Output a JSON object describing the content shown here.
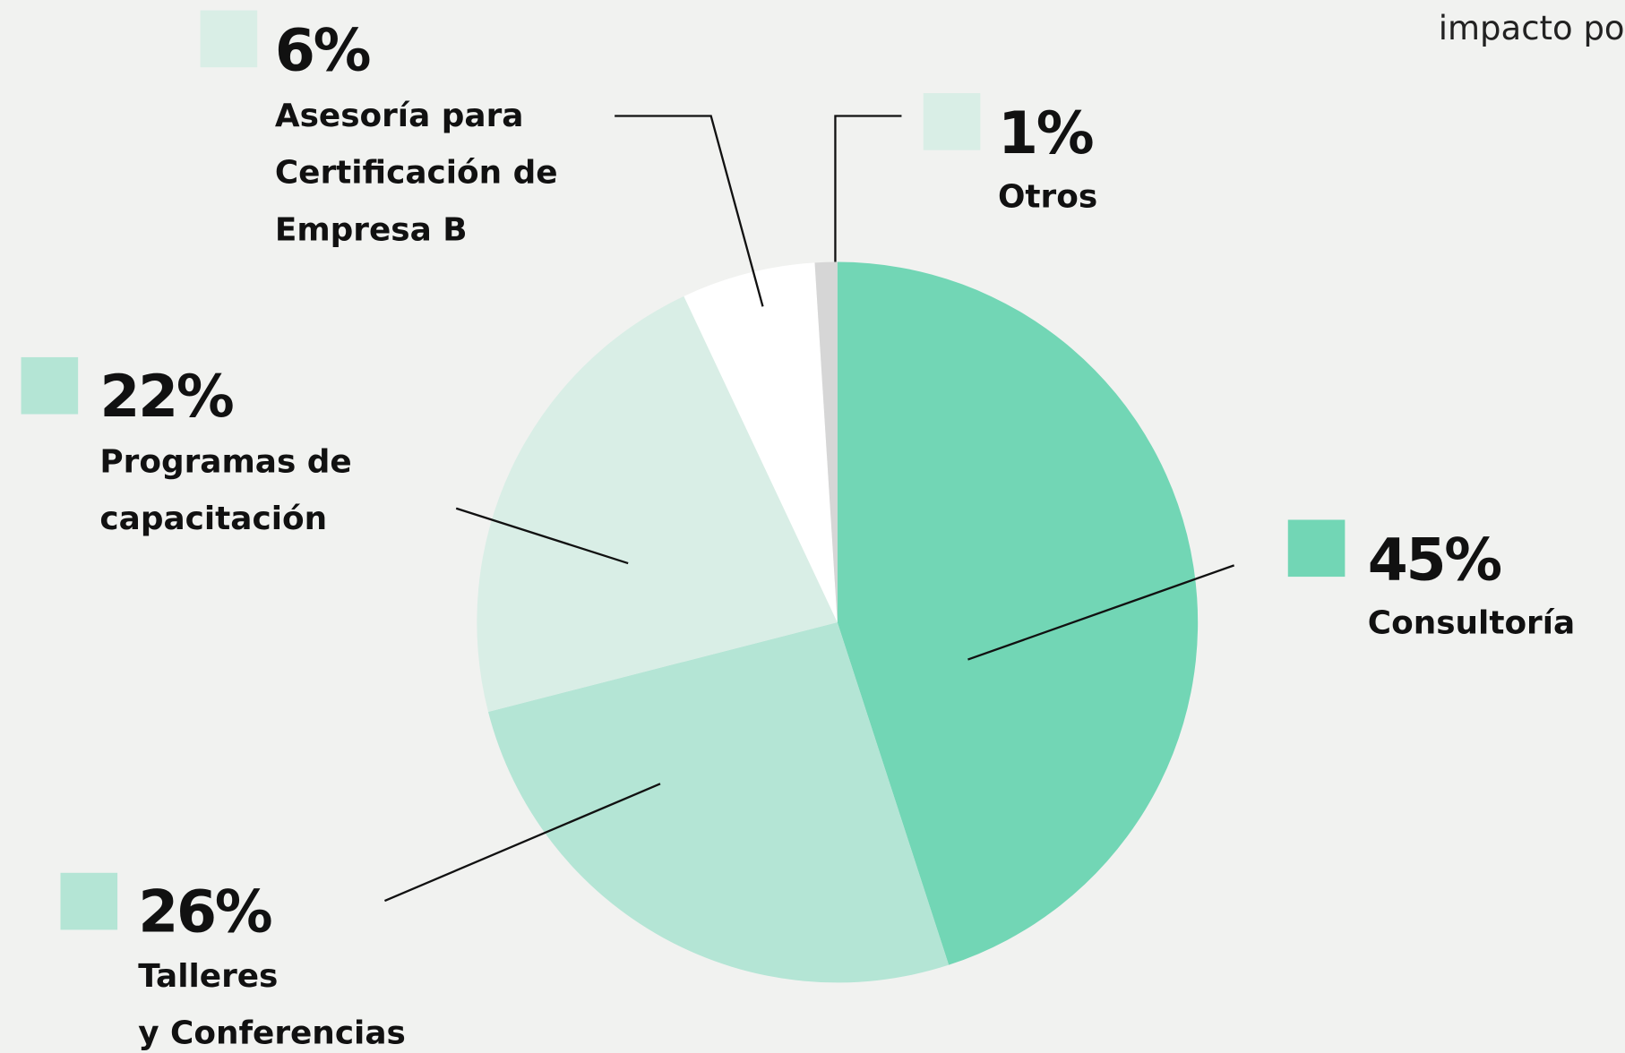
{
  "chart_data": {
    "type": "pie",
    "note": "impacto po",
    "categories": [
      "Consultoría",
      "Talleres\ny Conferencias",
      "Programas de\ncapacitación",
      "Asesoría para\nCertificación de\nEmpresa B",
      "Otros"
    ],
    "values": [
      45,
      26,
      22,
      6,
      1
    ],
    "value_labels": [
      "45%",
      "26%",
      "22%",
      "6%",
      "1%"
    ],
    "colors": [
      "#72d6b5",
      "#b4e5d5",
      "#d9eee6",
      "#ffffff",
      "#d6d6d6"
    ],
    "legend_colors": [
      "#72d6b5",
      "#b4e5d5",
      "#b4e5d5",
      "#d9eee6",
      "#d9eee6"
    ]
  }
}
